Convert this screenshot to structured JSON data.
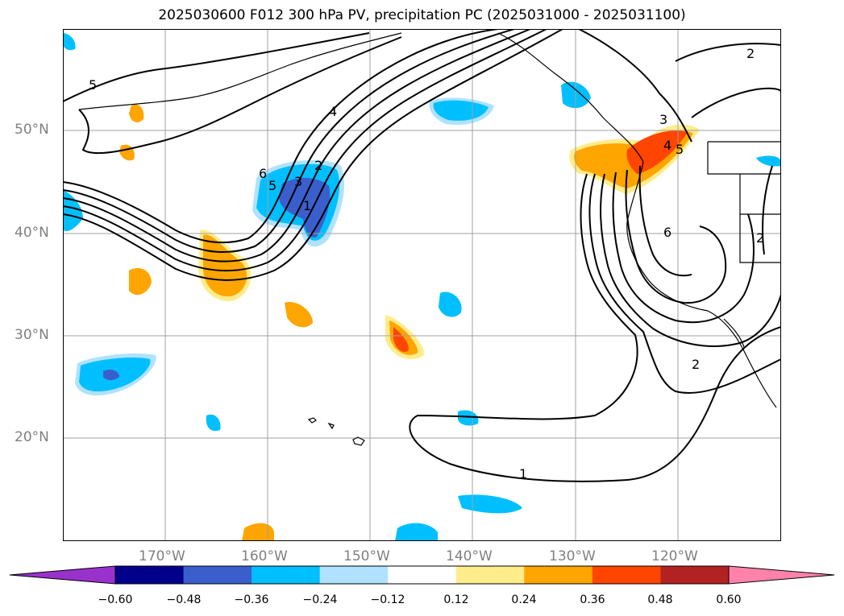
{
  "title": "2025030600 F012 300 hPa PV, precipitation PC (2025031000 - 2025031100)",
  "lat_labels": [
    "50°N",
    "40°N",
    "30°N",
    "20°N"
  ],
  "lon_labels": [
    "170°W",
    "160°W",
    "150°W",
    "140°W",
    "130°W",
    "120°W"
  ],
  "contour_labels": [
    "5",
    "4",
    "6",
    "5",
    "3",
    "2",
    "1",
    "3",
    "4",
    "5",
    "6",
    "2",
    "2",
    "1",
    "2"
  ],
  "colorbar": {
    "ticks": [
      "−0.60",
      "−0.48",
      "−0.36",
      "−0.24",
      "−0.12",
      "0.12",
      "0.24",
      "0.36",
      "0.48",
      "0.60"
    ],
    "colors": [
      "#9932cc",
      "#00008b",
      "#3a5fcd",
      "#00bfff",
      "#b0e2ff",
      "#ffffff",
      "#ffec8b",
      "#ffa500",
      "#ff4500",
      "#b22222",
      "#ff82ab"
    ]
  }
}
